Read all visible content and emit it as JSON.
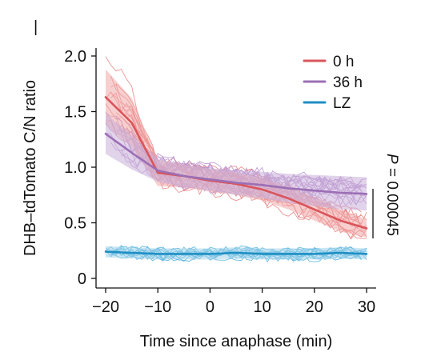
{
  "chart_data": {
    "type": "line",
    "xlabel": "Time since anaphase (min)",
    "ylabel": "DHB–tdTomato C/N ratio",
    "xlim": [
      -22,
      32
    ],
    "ylim": [
      -0.05,
      2.1
    ],
    "xticks": [
      -20,
      -10,
      0,
      10,
      20,
      30
    ],
    "xtick_labels": [
      "−20",
      "−10",
      "0",
      "10",
      "20",
      "30"
    ],
    "yticks": [
      0,
      0.5,
      1.0,
      1.5,
      2.0
    ],
    "ytick_labels": [
      "0",
      "0.5",
      "1.0",
      "1.5",
      "2.0"
    ],
    "legend_position": "top-right",
    "annotation": {
      "p_label": "P",
      "p_value": " = 0.00045",
      "orientation": "vertical"
    },
    "panel_mark": "|",
    "x": [
      -20,
      -15,
      -10,
      -5,
      0,
      5,
      10,
      15,
      20,
      25,
      30
    ],
    "series": [
      {
        "name": "0 h",
        "color": "#d9555b",
        "band_color": "#f0a8a8",
        "trace_color": "#e88080",
        "mean": [
          1.63,
          1.4,
          0.95,
          0.92,
          0.88,
          0.85,
          0.8,
          0.72,
          0.62,
          0.52,
          0.45
        ],
        "band": [
          0.25,
          0.22,
          0.12,
          0.1,
          0.1,
          0.1,
          0.1,
          0.1,
          0.1,
          0.1,
          0.08
        ],
        "n_traces": 14
      },
      {
        "name": "36 h",
        "color": "#9b6fb5",
        "band_color": "#c9aed9",
        "trace_color": "#b890cf",
        "mean": [
          1.3,
          1.13,
          0.97,
          0.92,
          0.89,
          0.86,
          0.84,
          0.81,
          0.79,
          0.77,
          0.76
        ],
        "band": [
          0.18,
          0.15,
          0.1,
          0.1,
          0.1,
          0.11,
          0.12,
          0.13,
          0.14,
          0.15,
          0.15
        ],
        "n_traces": 16
      },
      {
        "name": "LZ",
        "color": "#1f8fc4",
        "band_color": "#9fd2ea",
        "trace_color": "#4fb0dc",
        "mean": [
          0.24,
          0.23,
          0.22,
          0.22,
          0.22,
          0.23,
          0.22,
          0.22,
          0.22,
          0.23,
          0.22
        ],
        "band": [
          0.05,
          0.05,
          0.05,
          0.05,
          0.05,
          0.05,
          0.05,
          0.05,
          0.05,
          0.05,
          0.05
        ],
        "n_traces": 12
      }
    ]
  }
}
